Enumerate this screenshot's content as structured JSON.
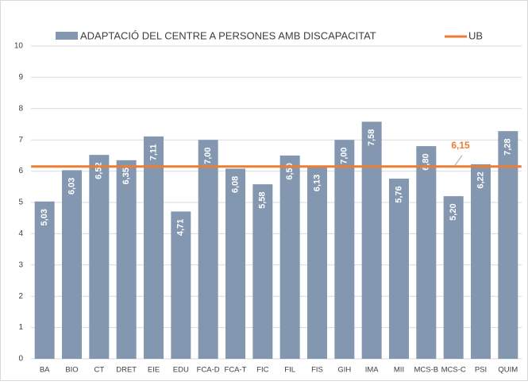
{
  "chart_data": {
    "type": "bar",
    "categories": [
      "BA",
      "BIO",
      "CT",
      "DRET",
      "EIE",
      "EDU",
      "FCA-D",
      "FCA-T",
      "FIC",
      "FIL",
      "FIS",
      "GIH",
      "IMA",
      "MII",
      "MCS-B",
      "MCS-C",
      "PSI",
      "QUIM"
    ],
    "series": [
      {
        "name": "ADAPTACIÓ DEL CENTRE A PERSONES AMB DISCAPACITAT",
        "color": "#8497b0",
        "values": [
          5.03,
          6.03,
          6.52,
          6.35,
          7.11,
          4.71,
          7.0,
          6.08,
          5.58,
          6.5,
          6.13,
          7.0,
          7.58,
          5.76,
          6.8,
          5.2,
          6.22,
          7.28
        ],
        "value_labels": [
          "5,03",
          "6,03",
          "6,52",
          "6,35",
          "7,11",
          "4,71",
          "7,00",
          "6,08",
          "5,58",
          "6,50",
          "6,13",
          "7,00",
          "7,58",
          "5,76",
          "6,80",
          "5,20",
          "6,22",
          "7,28"
        ]
      }
    ],
    "reference_line": {
      "name": "UB",
      "value": 6.15,
      "label": "6,15",
      "color": "#ed7d31"
    },
    "ylim": [
      0,
      10
    ],
    "yticks": [
      0,
      1,
      2,
      3,
      4,
      5,
      6,
      7,
      8,
      9,
      10
    ],
    "grid": true,
    "legend": "top"
  }
}
